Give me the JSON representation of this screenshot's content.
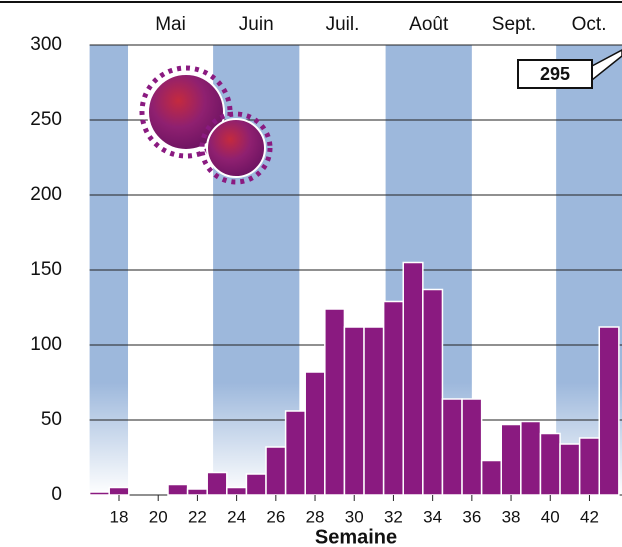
{
  "chart_data": {
    "type": "bar",
    "x_label": "Semaine",
    "annotation": "295",
    "color": "#8a1a80",
    "band_color": "#9db8dc",
    "months": [
      {
        "label": "Mai",
        "start": 18.46,
        "end": 22.8
      },
      {
        "label": "Juin",
        "start": 22.8,
        "end": 27.2
      },
      {
        "label": "Juil.",
        "start": 27.2,
        "end": 31.6
      },
      {
        "label": "Août",
        "start": 31.6,
        "end": 36.0
      },
      {
        "label": "Sept.",
        "start": 36.0,
        "end": 40.3
      },
      {
        "label": "Oct.",
        "start": 40.3,
        "end": 43.66
      }
    ],
    "x": [
      17,
      18,
      19,
      20,
      21,
      22,
      23,
      24,
      25,
      26,
      27,
      28,
      29,
      30,
      31,
      32,
      33,
      34,
      35,
      36,
      37,
      38,
      39,
      40,
      41,
      42,
      43
    ],
    "values": [
      2,
      5,
      0,
      0,
      7,
      4,
      15,
      5,
      14,
      32,
      56,
      82,
      124,
      112,
      112,
      129,
      155,
      137,
      64,
      64,
      23,
      47,
      49,
      41,
      34,
      38,
      112
    ],
    "xlim": [
      16.5,
      43.66
    ],
    "xticks": [
      18,
      20,
      22,
      24,
      26,
      28,
      30,
      32,
      34,
      36,
      38,
      40,
      42
    ],
    "ylim": [
      0,
      300
    ],
    "yticks": [
      0,
      50,
      100,
      150,
      200,
      250,
      300
    ],
    "grid": true
  }
}
